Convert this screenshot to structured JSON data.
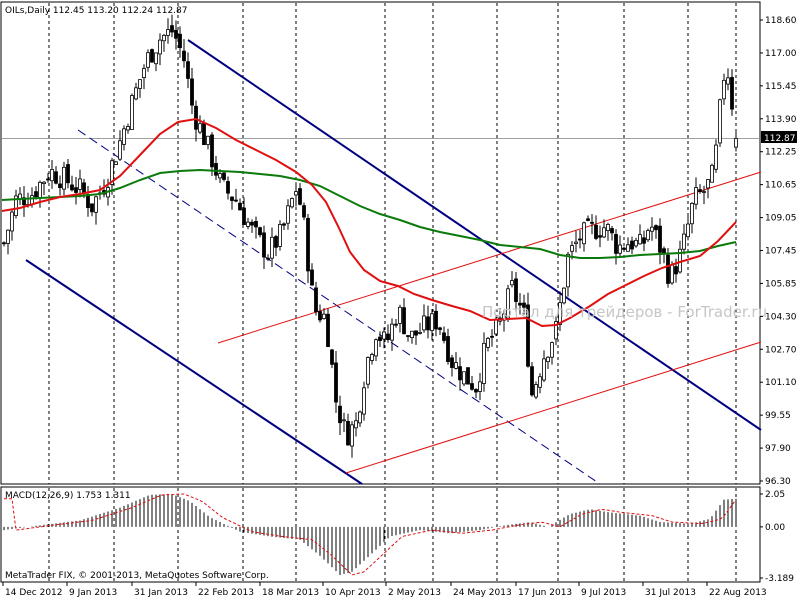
{
  "main_title": "OILs,Daily  112.45 113.20 112.24 112.87",
  "current_price": "112.87",
  "watermark": "Портал для трейдеров - ForTrader.ru",
  "copyright": "MetaTrader FIX, © 2001-2013, MetaQuotes Software Corp.",
  "macd_title": "MACD(12,26,9) 1.753 1.311",
  "colors": {
    "candles": "#000000",
    "fast_ma": "#e01010",
    "slow_ma": "#0a7a0a",
    "down_channel": "#000080",
    "up_channel": "#e01010",
    "macd_signal": "#e01010"
  },
  "chart_data": {
    "type": "candlestick",
    "symbol": "OILs",
    "timeframe": "Daily",
    "last_bar": {
      "open": 112.45,
      "high": 113.2,
      "low": 112.24,
      "close": 112.87
    },
    "price_ticks": [
      "118.60",
      "117.00",
      "115.45",
      "113.90",
      "112.25",
      "110.65",
      "109.05",
      "107.45",
      "105.85",
      "104.30",
      "102.70",
      "101.10",
      "99.55",
      "97.90",
      "96.30"
    ],
    "date_ticks": [
      "14 Dec 2012",
      "9 Jan 2013",
      "31 Jan 2013",
      "22 Feb 2013",
      "18 Mar 2013",
      "10 Apr 2013",
      "2 May 2013",
      "24 May 2013",
      "17 Jun 2013",
      "9 Jul 2013",
      "31 Jul 2013",
      "22 Aug 2013"
    ],
    "ylim": [
      96.3,
      118.6
    ],
    "grid": "vertical-dashed",
    "macd": {
      "params": "12,26,9",
      "main": 1.753,
      "signal": 1.311,
      "ticks": [
        "2.05",
        "0.00",
        "-3.189"
      ],
      "ylim": [
        -3.189,
        2.05
      ]
    }
  }
}
